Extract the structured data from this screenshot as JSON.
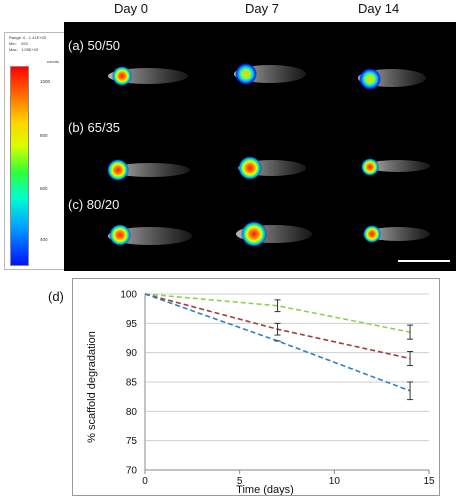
{
  "top": {
    "day_labels": [
      "Day 0",
      "Day 7",
      "Day 14"
    ],
    "group_labels": [
      "(a) 50/50",
      "(b) 65/35",
      "(c) 80/20"
    ],
    "scale_info": [
      "Range: 0 - 1.41E+03",
      "Min:    293",
      "Max:   1.05E+03"
    ],
    "scale_unit": "counts",
    "colorbar_ticks": [
      "1000",
      "800",
      "600",
      "400"
    ]
  },
  "panel_label": "(d)",
  "chart_data": {
    "type": "line",
    "xlabel": "Time (days)",
    "ylabel": "% scaffold degradation",
    "xlim": [
      0,
      15
    ],
    "ylim": [
      70,
      100
    ],
    "xticks": [
      0,
      5,
      10,
      15
    ],
    "yticks": [
      70,
      75,
      80,
      85,
      90,
      95,
      100
    ],
    "grid": true,
    "x": [
      0,
      7,
      14
    ],
    "series": [
      {
        "color": "#8fd14f",
        "values": [
          100,
          98,
          93.5
        ],
        "err": [
          null,
          1.0,
          1.2
        ]
      },
      {
        "color": "#a33a3a",
        "values": [
          100,
          94,
          89
        ],
        "err": [
          null,
          1.0,
          1.2
        ]
      },
      {
        "color": "#2f7fc1",
        "values": [
          100,
          92,
          83.5
        ],
        "err": [
          null,
          0,
          1.5
        ]
      }
    ]
  }
}
